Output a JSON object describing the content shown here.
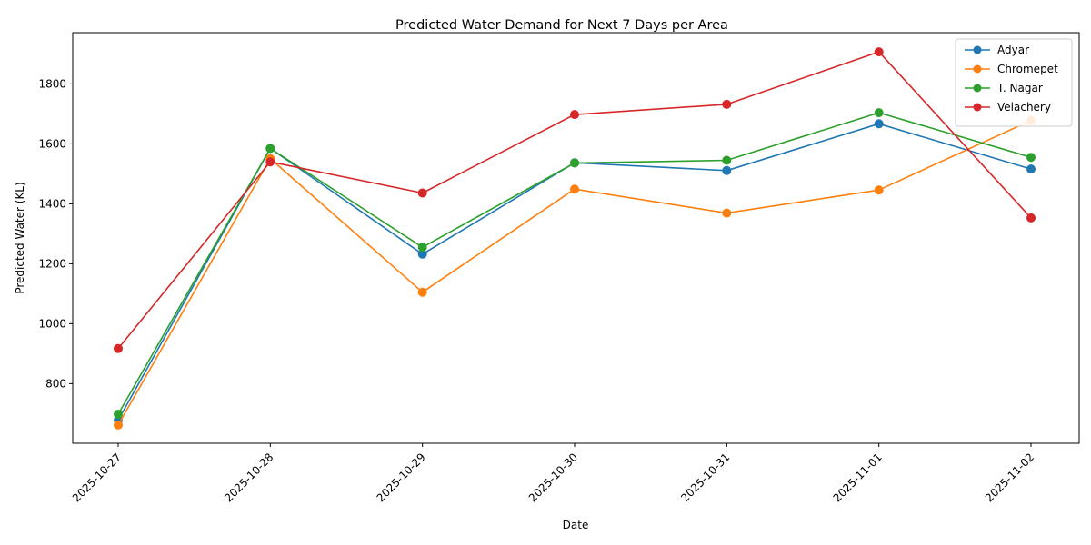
{
  "chart_data": {
    "type": "line",
    "title": "Predicted Water Demand for Next 7 Days per Area",
    "xlabel": "Date",
    "ylabel": "Predicted Water (KL)",
    "x": [
      "2025-10-27",
      "2025-10-28",
      "2025-10-29",
      "2025-10-30",
      "2025-10-31",
      "2025-11-01",
      "2025-11-02"
    ],
    "yticks": [
      800,
      1000,
      1200,
      1400,
      1600,
      1800
    ],
    "ylim": [
      601,
      1971
    ],
    "grid": false,
    "legend_position": "top-right",
    "markers": true,
    "series": [
      {
        "name": "Adyar",
        "color": "#1f77b4",
        "values": [
          678,
          1585,
          1232,
          1537,
          1511,
          1667,
          1516
        ]
      },
      {
        "name": "Chromepet",
        "color": "#ff7f0e",
        "values": [
          662,
          1551,
          1105,
          1449,
          1369,
          1446,
          1678
        ]
      },
      {
        "name": "T. Nagar",
        "color": "#2ca02c",
        "values": [
          698,
          1585,
          1255,
          1536,
          1545,
          1704,
          1555
        ]
      },
      {
        "name": "Velachery",
        "color": "#d62728",
        "values": [
          917,
          1540,
          1436,
          1698,
          1732,
          1907,
          1353
        ]
      }
    ]
  }
}
